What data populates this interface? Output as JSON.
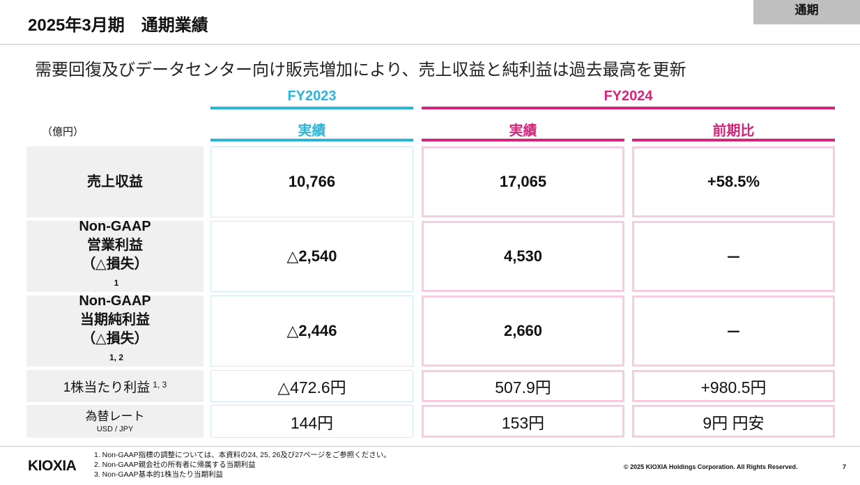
{
  "header": {
    "title": "2025年3月期　通期業績",
    "tag": "通期"
  },
  "subtitle": "需要回復及びデータセンター向け販売増加により、売上収益と純利益は過去最高を更新",
  "table": {
    "unit": "（億円）",
    "periods": [
      "FY2023",
      "FY2024"
    ],
    "columns": [
      "実績",
      "実績",
      "前期比"
    ],
    "rows": [
      {
        "label": [
          "売上収益"
        ],
        "note": "",
        "values": [
          "10,766",
          "17,065",
          "+58.5%"
        ]
      },
      {
        "label": [
          "Non-GAAP",
          "営業利益",
          "（△損失）"
        ],
        "note": "1",
        "values": [
          "△2,540",
          "4,530",
          "－"
        ]
      },
      {
        "label": [
          "Non-GAAP",
          "当期純利益",
          "（△損失）"
        ],
        "note": "1, 2",
        "values": [
          "△2,446",
          "2,660",
          "－"
        ]
      },
      {
        "label": [
          "1株当たり利益"
        ],
        "note": "1, 3",
        "values": [
          "△472.6円",
          "507.9円",
          "+980.5円"
        ]
      },
      {
        "label": [
          "為替レート",
          "USD / JPY"
        ],
        "note": "",
        "values": [
          "144円",
          "153円",
          "9円 円安"
        ]
      }
    ]
  },
  "footer": {
    "logo": "KIOXIA",
    "notes": [
      "1. Non-GAAP指標の調整については、本資料の24, 25, 26及び27ページをご参照ください。",
      "2. Non-GAAP親会社の所有者に帰属する当期利益",
      "3. Non-GAAP基本的1株当たり当期利益"
    ],
    "copyright": "© 2025 KIOXIA Holdings Corporation. All Rights Reserved.",
    "page": "7"
  },
  "colors": {
    "fy2023": "#2cb5d9",
    "fy2024": "#d6247d"
  }
}
